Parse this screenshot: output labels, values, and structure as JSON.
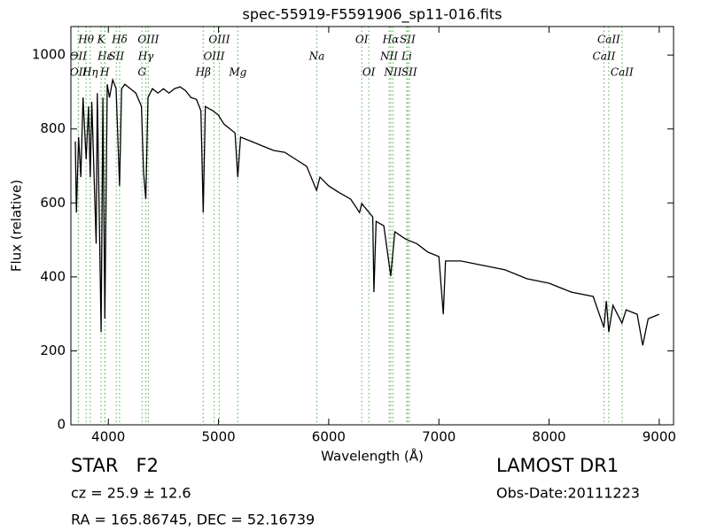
{
  "chart_data": {
    "type": "line",
    "title": "spec-55919-F5591906_sp11-016.fits",
    "xlabel": "Wavelength (Å)",
    "ylabel": "Flux (relative)",
    "color": "#000000",
    "line_color": "#66bb66",
    "xlim": [
      3660,
      9130
    ],
    "ylim": [
      0,
      1077
    ],
    "xticks": [
      4000,
      5000,
      6000,
      7000,
      8000,
      9000
    ],
    "yticks": [
      0,
      200,
      400,
      600,
      800,
      1000
    ],
    "x": [
      3700,
      3710,
      3730,
      3750,
      3770,
      3798,
      3820,
      3835,
      3850,
      3889,
      3900,
      3934,
      3950,
      3968,
      3990,
      4010,
      4040,
      4070,
      4102,
      4120,
      4150,
      4200,
      4250,
      4300,
      4320,
      4340,
      4360,
      4400,
      4450,
      4500,
      4550,
      4600,
      4650,
      4700,
      4750,
      4800,
      4840,
      4861,
      4880,
      4950,
      5000,
      5050,
      5100,
      5150,
      5175,
      5200,
      5300,
      5400,
      5500,
      5600,
      5700,
      5800,
      5890,
      5920,
      6000,
      6100,
      6200,
      6280,
      6300,
      6400,
      6410,
      6430,
      6500,
      6563,
      6600,
      6700,
      6800,
      6900,
      7000,
      7040,
      7060,
      7200,
      7400,
      7600,
      7800,
      8000,
      8200,
      8400,
      8498,
      8520,
      8542,
      8580,
      8662,
      8700,
      8800,
      8850,
      8900,
      9000
    ],
    "values": [
      766,
      574,
      778,
      670,
      885,
      718,
      861,
      670,
      873,
      490,
      897,
      251,
      885,
      287,
      921,
      885,
      933,
      909,
      646,
      909,
      921,
      909,
      897,
      861,
      682,
      610,
      885,
      909,
      897,
      909,
      897,
      909,
      914,
      904,
      885,
      880,
      849,
      574,
      861,
      849,
      837,
      813,
      801,
      789,
      670,
      778,
      766,
      754,
      742,
      737,
      718,
      699,
      634,
      670,
      646,
      627,
      610,
      574,
      598,
      562,
      359,
      550,
      538,
      402,
      522,
      502,
      490,
      467,
      455,
      299,
      443,
      443,
      431,
      419,
      395,
      383,
      359,
      347,
      263,
      335,
      251,
      323,
      275,
      311,
      299,
      215,
      287,
      299
    ],
    "spectral_lines": [
      [
        {
          "label": "Hθ",
          "wavelength": 3798
        },
        {
          "label": "K",
          "wavelength": 3934
        },
        {
          "label": "Hδ",
          "wavelength": 4102
        },
        {
          "label": "OIII",
          "wavelength": 4363
        },
        {
          "label": "OIII",
          "wavelength": 5007
        },
        {
          "label": "OI",
          "wavelength": 6300
        },
        {
          "label": "Hα",
          "wavelength": 6563
        },
        {
          "label": "SII",
          "wavelength": 6716
        },
        {
          "label": "CaII",
          "wavelength": 8542
        }
      ],
      [
        {
          "label": "OII",
          "wavelength": 3727
        },
        {
          "label": "Hε",
          "wavelength": 3970
        },
        {
          "label": "SII",
          "wavelength": 4072
        },
        {
          "label": "Hγ",
          "wavelength": 4340
        },
        {
          "label": "OIII",
          "wavelength": 4959
        },
        {
          "label": "Na",
          "wavelength": 5892
        },
        {
          "label": "NII",
          "wavelength": 6548
        },
        {
          "label": "Li",
          "wavelength": 6708
        },
        {
          "label": "CaII",
          "wavelength": 8498
        }
      ],
      [
        {
          "label": "OII",
          "wavelength": 3729
        },
        {
          "label": "Hη",
          "wavelength": 3835
        },
        {
          "label": "H",
          "wavelength": 3968
        },
        {
          "label": "G",
          "wavelength": 4305
        },
        {
          "label": "Hβ",
          "wavelength": 4861
        },
        {
          "label": "Mg",
          "wavelength": 5175
        },
        {
          "label": "OI",
          "wavelength": 6364
        },
        {
          "label": "NII",
          "wavelength": 6583
        },
        {
          "label": "SII",
          "wavelength": 6731
        },
        {
          "label": "CaII",
          "wavelength": 8662
        }
      ]
    ],
    "object_class": "STAR   F2",
    "redshift": "cz = 25.9 ± 12.6",
    "coordinates": "RA = 165.86745, DEC = 52.16739",
    "survey": "LAMOST DR1",
    "obs_date": "Obs-Date:20111223"
  }
}
